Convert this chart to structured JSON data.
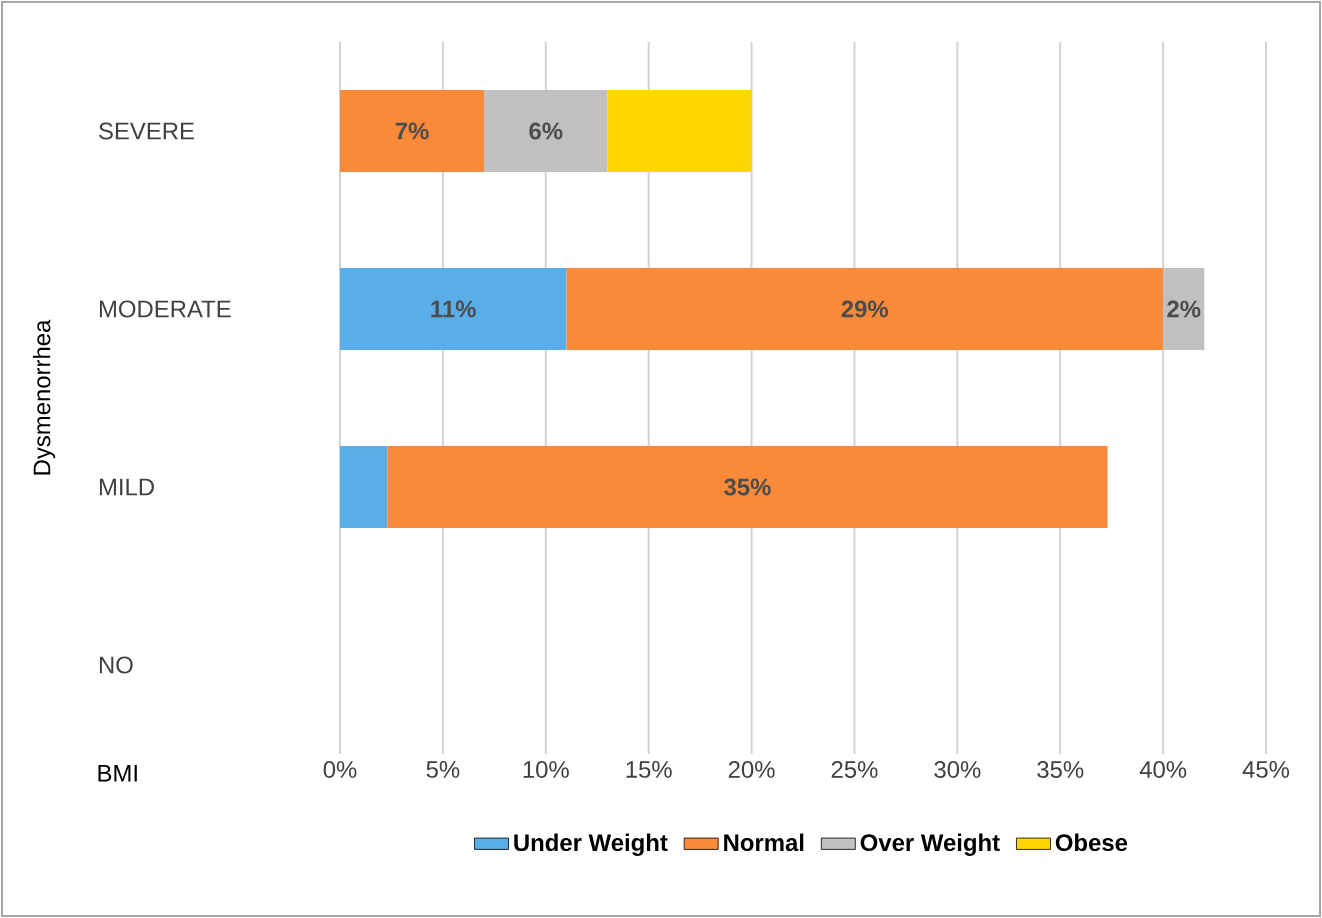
{
  "chart_data": {
    "type": "bar",
    "orientation": "horizontal",
    "stacked": true,
    "xlabel": "BMI",
    "ylabel": "Dysmenorrhea",
    "categories": [
      "SEVERE",
      "MODERATE",
      "MILD",
      "NO"
    ],
    "series": [
      {
        "name": "Under Weight",
        "color": "#5aaee8",
        "values": [
          null,
          11,
          2.3,
          null
        ],
        "value_labels": [
          null,
          "11%",
          null,
          null
        ]
      },
      {
        "name": "Normal",
        "color": "#f98a3a",
        "values": [
          7,
          29,
          35,
          null
        ],
        "value_labels": [
          "7%",
          "29%",
          "35%",
          null
        ]
      },
      {
        "name": "Over Weight",
        "color": "#c0c0c0",
        "values": [
          6,
          2,
          null,
          null
        ],
        "value_labels": [
          "6%",
          "2%",
          null,
          null
        ]
      },
      {
        "name": "Obese",
        "color": "#ffd700",
        "values": [
          7,
          null,
          null,
          null
        ],
        "value_labels": [
          null,
          null,
          null,
          null
        ]
      }
    ],
    "xlim": [
      0,
      45
    ],
    "xticks": [
      {
        "value": 0,
        "label": "0%"
      },
      {
        "value": 5,
        "label": "5%"
      },
      {
        "value": 10,
        "label": "10%"
      },
      {
        "value": 15,
        "label": "15%"
      },
      {
        "value": 20,
        "label": "20%"
      },
      {
        "value": 25,
        "label": "25%"
      },
      {
        "value": 30,
        "label": "30%"
      },
      {
        "value": 35,
        "label": "35%"
      },
      {
        "value": 40,
        "label": "40%"
      },
      {
        "value": 45,
        "label": "45%"
      }
    ],
    "grid": "x",
    "legend": "bottom"
  }
}
